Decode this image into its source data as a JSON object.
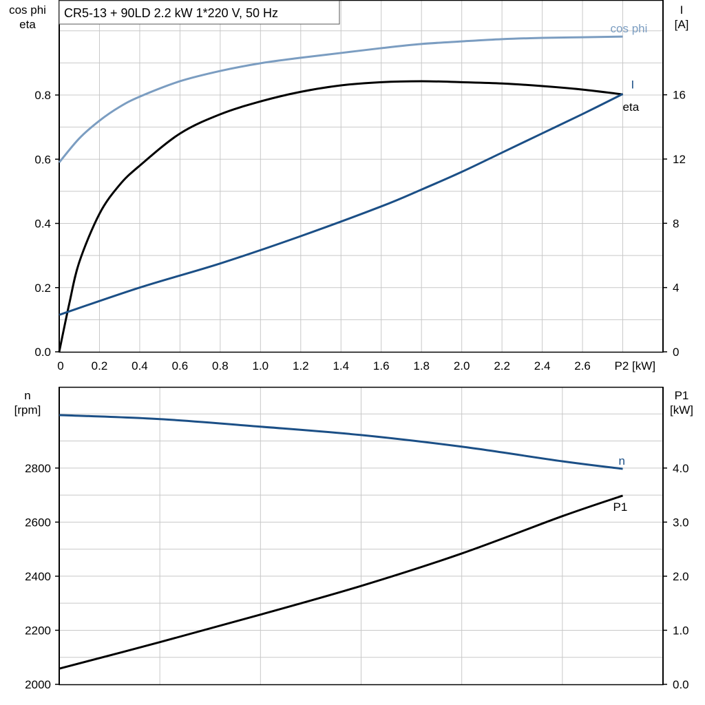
{
  "title": "CR5-13 + 90LD   2.2 kW   1*220 V, 50 Hz",
  "colors": {
    "cos_phi": "#7b9dc1",
    "current": "#1b4f86",
    "eta": "#000000",
    "n": "#1b4f86",
    "P1": "#000000",
    "grid": "#c8c8c8"
  },
  "chart_data": [
    {
      "type": "line",
      "grid": true,
      "xlabel": "P2 [kW]",
      "x_ticks": [
        "0",
        "0.2",
        "0.4",
        "0.6",
        "0.8",
        "1.0",
        "1.2",
        "1.4",
        "1.6",
        "1.8",
        "2.0",
        "2.2",
        "2.4",
        "2.6"
      ],
      "xlim": [
        0,
        3.0
      ],
      "ylabel_left": [
        "cos phi",
        "eta"
      ],
      "ylim_left": [
        0,
        1.096
      ],
      "y_ticks_left": [
        "0.0",
        "0.2",
        "0.4",
        "0.6",
        "0.8"
      ],
      "ylabel_right": [
        "I",
        "[A]"
      ],
      "ylim_right": [
        0,
        21.9
      ],
      "y_ticks_right": [
        "0",
        "4",
        "8",
        "12",
        "16"
      ],
      "series": [
        {
          "name": "cos phi",
          "axis": "left",
          "x": [
            0,
            0.1,
            0.2,
            0.3,
            0.4,
            0.6,
            0.8,
            1.0,
            1.2,
            1.4,
            1.6,
            1.8,
            2.0,
            2.2,
            2.4,
            2.6,
            2.8
          ],
          "y": [
            0.59,
            0.665,
            0.72,
            0.763,
            0.795,
            0.843,
            0.875,
            0.899,
            0.916,
            0.931,
            0.946,
            0.959,
            0.967,
            0.974,
            0.978,
            0.98,
            0.982
          ]
        },
        {
          "name": "eta",
          "axis": "left",
          "x": [
            0,
            0.05,
            0.1,
            0.2,
            0.3,
            0.4,
            0.6,
            0.8,
            1.0,
            1.2,
            1.4,
            1.6,
            1.8,
            2.0,
            2.2,
            2.4,
            2.6,
            2.8
          ],
          "y": [
            0,
            0.15,
            0.28,
            0.43,
            0.52,
            0.58,
            0.68,
            0.74,
            0.78,
            0.81,
            0.83,
            0.84,
            0.843,
            0.84,
            0.836,
            0.828,
            0.817,
            0.802
          ]
        },
        {
          "name": "I",
          "axis": "right",
          "x": [
            0,
            0.4,
            0.8,
            1.2,
            1.6,
            1.8,
            2.0,
            2.2,
            2.4,
            2.6,
            2.8
          ],
          "y": [
            2.3,
            4.0,
            5.5,
            7.2,
            9.05,
            10.1,
            11.2,
            12.4,
            13.6,
            14.8,
            16.05
          ]
        }
      ]
    },
    {
      "type": "line",
      "grid": true,
      "xlim": [
        0,
        3.0
      ],
      "ylabel_left": [
        "n",
        "[rpm]"
      ],
      "ylim_left": [
        2000,
        3100
      ],
      "y_ticks_left": [
        "2000",
        "2200",
        "2400",
        "2600",
        "2800"
      ],
      "ylabel_right": [
        "P1",
        "[kW]"
      ],
      "ylim_right": [
        0,
        5.5
      ],
      "y_ticks_right": [
        "0.0",
        "1.0",
        "2.0",
        "3.0",
        "4.0"
      ],
      "series": [
        {
          "name": "n",
          "axis": "left",
          "x": [
            0,
            0.5,
            1.0,
            1.5,
            2.0,
            2.5,
            2.8
          ],
          "y": [
            2996,
            2981,
            2953,
            2922,
            2879,
            2825,
            2797
          ]
        },
        {
          "name": "P1",
          "axis": "right",
          "x": [
            0,
            0.5,
            1.0,
            1.5,
            2.0,
            2.5,
            2.8
          ],
          "y": [
            0.29,
            0.78,
            1.29,
            1.82,
            2.42,
            3.11,
            3.49
          ]
        }
      ]
    }
  ]
}
